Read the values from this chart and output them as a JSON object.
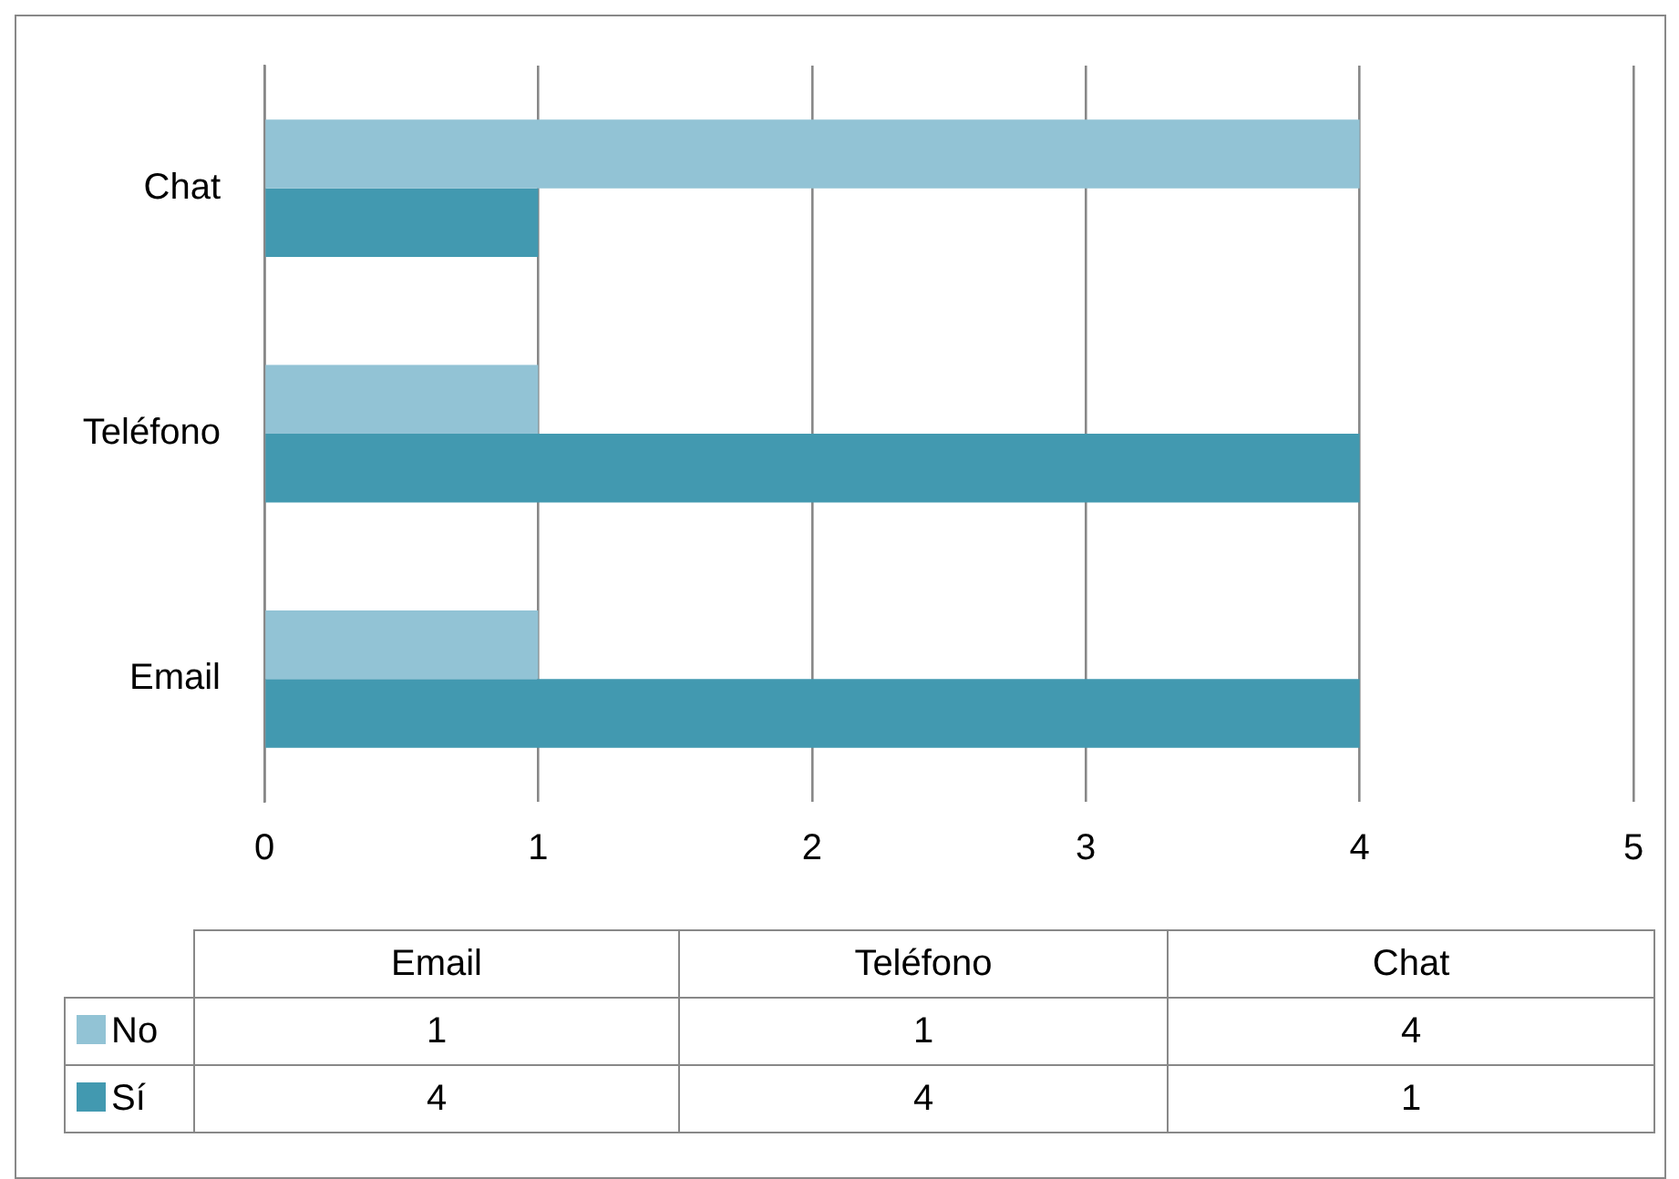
{
  "chart_data": {
    "type": "bar",
    "orientation": "horizontal",
    "categories": [
      "Chat",
      "Teléfono",
      "Email"
    ],
    "series": [
      {
        "name": "No",
        "color": "#92c3d5",
        "values": [
          4,
          1,
          1
        ]
      },
      {
        "name": "Sí",
        "color": "#4299b0",
        "values": [
          1,
          4,
          4
        ]
      }
    ],
    "xlim": [
      0,
      5
    ],
    "xticks": [
      0,
      1,
      2,
      3,
      4,
      5
    ],
    "grid": "x",
    "legend": "bottom",
    "annotations": [
      "1",
      "1",
      "4",
      "4",
      "4",
      "1"
    ]
  }
}
